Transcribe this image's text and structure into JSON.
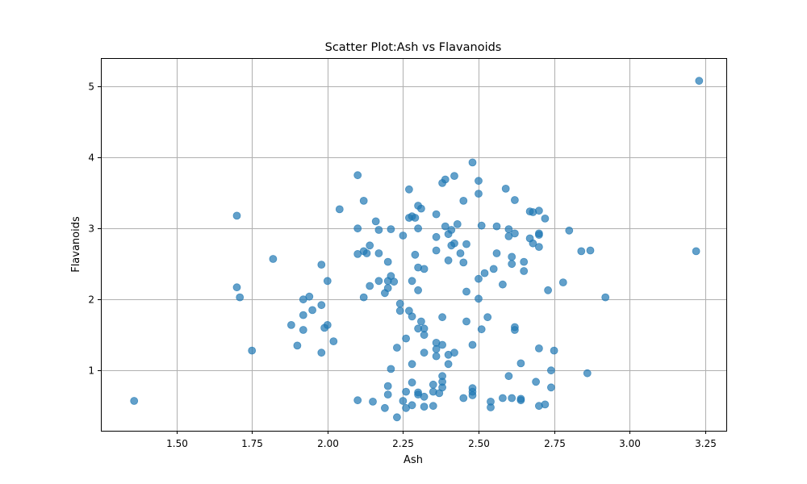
{
  "chart_data": {
    "type": "scatter",
    "title": "Scatter Plot:Ash vs Flavanoids",
    "xlabel": "Ash",
    "ylabel": "Flavanoids",
    "xlim": [
      1.25,
      3.32
    ],
    "ylim": [
      0.15,
      5.4
    ],
    "xticks": [
      1.5,
      1.75,
      2.0,
      2.25,
      2.5,
      2.75,
      3.0,
      3.25
    ],
    "xtick_labels": [
      "1.50",
      "1.75",
      "2.00",
      "2.25",
      "2.50",
      "2.75",
      "3.00",
      "3.25"
    ],
    "yticks": [
      1,
      2,
      3,
      4,
      5
    ],
    "ytick_labels": [
      "1",
      "2",
      "3",
      "4",
      "5"
    ],
    "grid": true,
    "color": "#1f77b4",
    "alpha": 0.7,
    "points": [
      [
        1.36,
        0.57
      ],
      [
        1.7,
        3.18
      ],
      [
        1.7,
        2.17
      ],
      [
        1.71,
        2.03
      ],
      [
        1.75,
        1.28
      ],
      [
        1.82,
        2.57
      ],
      [
        1.88,
        1.64
      ],
      [
        1.9,
        1.35
      ],
      [
        1.92,
        2.0
      ],
      [
        1.92,
        1.78
      ],
      [
        1.92,
        1.57
      ],
      [
        1.94,
        2.04
      ],
      [
        1.95,
        1.85
      ],
      [
        1.98,
        2.49
      ],
      [
        1.98,
        1.92
      ],
      [
        1.98,
        1.25
      ],
      [
        1.99,
        1.6
      ],
      [
        2.0,
        2.26
      ],
      [
        2.0,
        1.64
      ],
      [
        2.02,
        1.41
      ],
      [
        2.04,
        3.27
      ],
      [
        2.1,
        3.75
      ],
      [
        2.1,
        3.0
      ],
      [
        2.1,
        2.64
      ],
      [
        2.1,
        0.58
      ],
      [
        2.12,
        3.39
      ],
      [
        2.12,
        2.68
      ],
      [
        2.12,
        2.03
      ],
      [
        2.13,
        2.65
      ],
      [
        2.14,
        2.76
      ],
      [
        2.14,
        2.19
      ],
      [
        2.15,
        0.56
      ],
      [
        2.16,
        3.1
      ],
      [
        2.17,
        2.98
      ],
      [
        2.17,
        2.65
      ],
      [
        2.17,
        2.26
      ],
      [
        2.19,
        2.09
      ],
      [
        2.19,
        0.47
      ],
      [
        2.2,
        2.53
      ],
      [
        2.2,
        2.26
      ],
      [
        2.2,
        2.16
      ],
      [
        2.2,
        0.78
      ],
      [
        2.2,
        0.66
      ],
      [
        2.21,
        2.99
      ],
      [
        2.21,
        2.33
      ],
      [
        2.21,
        1.02
      ],
      [
        2.22,
        2.25
      ],
      [
        2.23,
        1.32
      ],
      [
        2.23,
        0.34
      ],
      [
        2.24,
        1.94
      ],
      [
        2.24,
        1.84
      ],
      [
        2.25,
        2.9
      ],
      [
        2.25,
        0.57
      ],
      [
        2.26,
        1.45
      ],
      [
        2.26,
        0.7
      ],
      [
        2.26,
        0.47
      ],
      [
        2.27,
        3.55
      ],
      [
        2.27,
        3.15
      ],
      [
        2.27,
        1.84
      ],
      [
        2.28,
        3.17
      ],
      [
        2.28,
        2.26
      ],
      [
        2.28,
        1.76
      ],
      [
        2.28,
        1.09
      ],
      [
        2.28,
        0.83
      ],
      [
        2.28,
        0.51
      ],
      [
        2.29,
        3.15
      ],
      [
        2.29,
        2.63
      ],
      [
        2.3,
        3.32
      ],
      [
        2.3,
        3.0
      ],
      [
        2.3,
        2.45
      ],
      [
        2.3,
        2.13
      ],
      [
        2.3,
        1.59
      ],
      [
        2.3,
        0.69
      ],
      [
        2.3,
        0.66
      ],
      [
        2.31,
        3.28
      ],
      [
        2.31,
        1.69
      ],
      [
        2.32,
        2.43
      ],
      [
        2.32,
        1.59
      ],
      [
        2.32,
        1.5
      ],
      [
        2.32,
        1.25
      ],
      [
        2.32,
        0.63
      ],
      [
        2.32,
        0.49
      ],
      [
        2.35,
        0.8
      ],
      [
        2.35,
        0.7
      ],
      [
        2.35,
        0.5
      ],
      [
        2.36,
        3.2
      ],
      [
        2.36,
        2.88
      ],
      [
        2.36,
        2.69
      ],
      [
        2.36,
        1.39
      ],
      [
        2.36,
        1.3
      ],
      [
        2.36,
        1.2
      ],
      [
        2.37,
        0.68
      ],
      [
        2.38,
        3.64
      ],
      [
        2.38,
        1.75
      ],
      [
        2.38,
        1.36
      ],
      [
        2.38,
        0.92
      ],
      [
        2.38,
        0.84
      ],
      [
        2.38,
        0.76
      ],
      [
        2.39,
        3.69
      ],
      [
        2.39,
        3.03
      ],
      [
        2.4,
        2.92
      ],
      [
        2.4,
        2.55
      ],
      [
        2.4,
        1.22
      ],
      [
        2.4,
        1.09
      ],
      [
        2.41,
        2.98
      ],
      [
        2.41,
        2.76
      ],
      [
        2.42,
        3.74
      ],
      [
        2.42,
        2.79
      ],
      [
        2.42,
        1.25
      ],
      [
        2.43,
        3.06
      ],
      [
        2.44,
        2.65
      ],
      [
        2.45,
        3.39
      ],
      [
        2.45,
        2.52
      ],
      [
        2.45,
        0.61
      ],
      [
        2.46,
        2.78
      ],
      [
        2.46,
        2.11
      ],
      [
        2.46,
        1.69
      ],
      [
        2.48,
        3.93
      ],
      [
        2.48,
        1.36
      ],
      [
        2.48,
        0.75
      ],
      [
        2.48,
        0.7
      ],
      [
        2.48,
        0.65
      ],
      [
        2.5,
        3.67
      ],
      [
        2.5,
        3.49
      ],
      [
        2.5,
        2.29
      ],
      [
        2.5,
        2.01
      ],
      [
        2.51,
        3.04
      ],
      [
        2.51,
        1.58
      ],
      [
        2.52,
        2.37
      ],
      [
        2.53,
        1.75
      ],
      [
        2.54,
        0.56
      ],
      [
        2.54,
        0.48
      ],
      [
        2.55,
        2.43
      ],
      [
        2.56,
        3.03
      ],
      [
        2.56,
        2.65
      ],
      [
        2.58,
        2.21
      ],
      [
        2.58,
        0.61
      ],
      [
        2.59,
        3.56
      ],
      [
        2.6,
        2.99
      ],
      [
        2.6,
        2.89
      ],
      [
        2.6,
        0.92
      ],
      [
        2.61,
        2.6
      ],
      [
        2.61,
        2.5
      ],
      [
        2.61,
        0.61
      ],
      [
        2.62,
        3.4
      ],
      [
        2.62,
        2.93
      ],
      [
        2.62,
        1.61
      ],
      [
        2.62,
        1.57
      ],
      [
        2.64,
        1.1
      ],
      [
        2.64,
        0.6
      ],
      [
        2.64,
        0.58
      ],
      [
        2.65,
        2.53
      ],
      [
        2.65,
        2.4
      ],
      [
        2.67,
        3.24
      ],
      [
        2.67,
        2.86
      ],
      [
        2.68,
        3.23
      ],
      [
        2.68,
        2.79
      ],
      [
        2.69,
        0.84
      ],
      [
        2.7,
        3.25
      ],
      [
        2.7,
        2.93
      ],
      [
        2.7,
        2.91
      ],
      [
        2.7,
        2.74
      ],
      [
        2.7,
        1.31
      ],
      [
        2.7,
        0.5
      ],
      [
        2.72,
        3.14
      ],
      [
        2.72,
        0.52
      ],
      [
        2.73,
        2.13
      ],
      [
        2.74,
        1.0
      ],
      [
        2.74,
        0.76
      ],
      [
        2.75,
        1.28
      ],
      [
        2.78,
        2.24
      ],
      [
        2.8,
        2.97
      ],
      [
        2.84,
        2.68
      ],
      [
        2.86,
        0.96
      ],
      [
        2.87,
        2.69
      ],
      [
        2.92,
        2.03
      ],
      [
        3.22,
        2.68
      ],
      [
        3.23,
        5.08
      ]
    ]
  }
}
